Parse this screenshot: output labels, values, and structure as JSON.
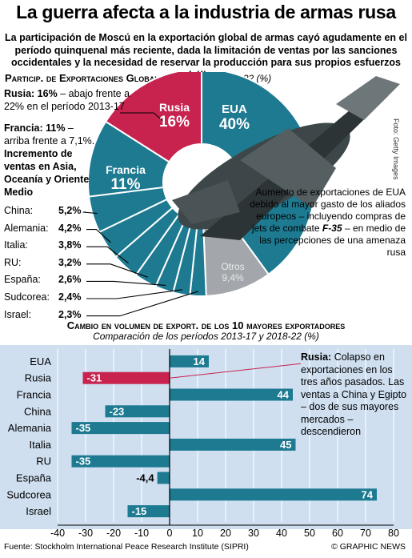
{
  "title": "La guerra afecta a la industria de armas rusa",
  "subtitle": "La participación de Moscú en la exportación global de armas cayó agudamente en el período quinquenal más reciente, dada la limitación de ventas por las sanciones occidentales y la necesidad de reservar la producción para sus propios esfuerzos bélicos",
  "pie_section": {
    "heading": "Particip. de Exportaciones Globales de Armas,",
    "heading_period": "2018-22 (%)",
    "russia_note_bold": "Rusia: 16%",
    "russia_note_rest": "– abajo frente a 22% en el período 2013-17",
    "france_note_bold": "Francia: 11%",
    "france_note_rest": "– arriba frente a 7,1%.",
    "france_increase": "Incremento de ventas en Asia, Oceanía y Oriente Medio",
    "countries": [
      {
        "name": "China:",
        "value": "5,2%"
      },
      {
        "name": "Alemania:",
        "value": "4,2%"
      },
      {
        "name": "Italia:",
        "value": "3,8%"
      },
      {
        "name": "RU:",
        "value": "3,2%"
      },
      {
        "name": "España:",
        "value": "2,6%"
      },
      {
        "name": "Sudcorea:",
        "value": "2,4%"
      },
      {
        "name": "Israel:",
        "value": "2,3%"
      }
    ],
    "slice_labels": {
      "russia_name": "Rusia",
      "russia_value": "16%",
      "usa_name": "EUA",
      "usa_value": "40%",
      "france_name": "Francia",
      "france_value": "11%",
      "others_name": "Otros",
      "others_value": "9,4%"
    },
    "usa_note": "Aumento de exportaciones de EUA debido al mayor gasto de los aliados europeos – incluyendo compras de jets de combate",
    "usa_note_jet": "F-35",
    "usa_note_end": "– en medio de las percepciones de una amenaza rusa",
    "photo_credit": "Foto: Getty Images"
  },
  "bar_section": {
    "heading": "Cambio en volumen de export. de los 10 mayores exportadores",
    "subheading": "Comparación de los períodos 2013-17 y 2018-22 (%)",
    "russia_note_bold": "Rusia:",
    "russia_note_rest": "Colapso en exportaciones en los tres años pasados. Las ventas a China y Egipto – dos de sus mayores mercados – descendieron"
  },
  "source": "Fuente: Stockholm International Peace Research Institute (SIPRI)",
  "credit": "© GRAPHIC NEWS",
  "colors": {
    "teal": "#1d7a91",
    "russia": "#c8234f",
    "others": "#a3a6aa",
    "panel": "#cfdff0"
  },
  "chart_data": [
    {
      "type": "pie",
      "title": "Particip. de Exportaciones Globales de Armas, 2018-22 (%)",
      "slices": [
        {
          "name": "EUA",
          "value": 40
        },
        {
          "name": "Rusia",
          "value": 16
        },
        {
          "name": "Francia",
          "value": 11
        },
        {
          "name": "China",
          "value": 5.2
        },
        {
          "name": "Alemania",
          "value": 4.2
        },
        {
          "name": "Italia",
          "value": 3.8
        },
        {
          "name": "RU",
          "value": 3.2
        },
        {
          "name": "España",
          "value": 2.6
        },
        {
          "name": "Sudcorea",
          "value": 2.4
        },
        {
          "name": "Israel",
          "value": 2.3
        },
        {
          "name": "Otros",
          "value": 9.4
        }
      ]
    },
    {
      "type": "bar",
      "orientation": "horizontal",
      "title": "Cambio en volumen de export. de los 10 mayores exportadores",
      "subtitle": "Comparación de los períodos 2013-17 y 2018-22 (%)",
      "categories": [
        "EUA",
        "Rusia",
        "Francia",
        "China",
        "Alemania",
        "Italia",
        "RU",
        "España",
        "Sudcorea",
        "Israel"
      ],
      "values": [
        14,
        -31,
        44,
        -23,
        -35,
        45,
        -35,
        -4.4,
        74,
        -15
      ],
      "value_labels": [
        "14",
        "-31",
        "44",
        "-23",
        "-35",
        "45",
        "-35",
        "-4,4",
        "74",
        "-15"
      ],
      "xlim": [
        -40,
        80
      ],
      "xticks": [
        -40,
        -30,
        -20,
        -10,
        0,
        10,
        20,
        30,
        40,
        50,
        60,
        70,
        80
      ],
      "grid": true
    }
  ]
}
